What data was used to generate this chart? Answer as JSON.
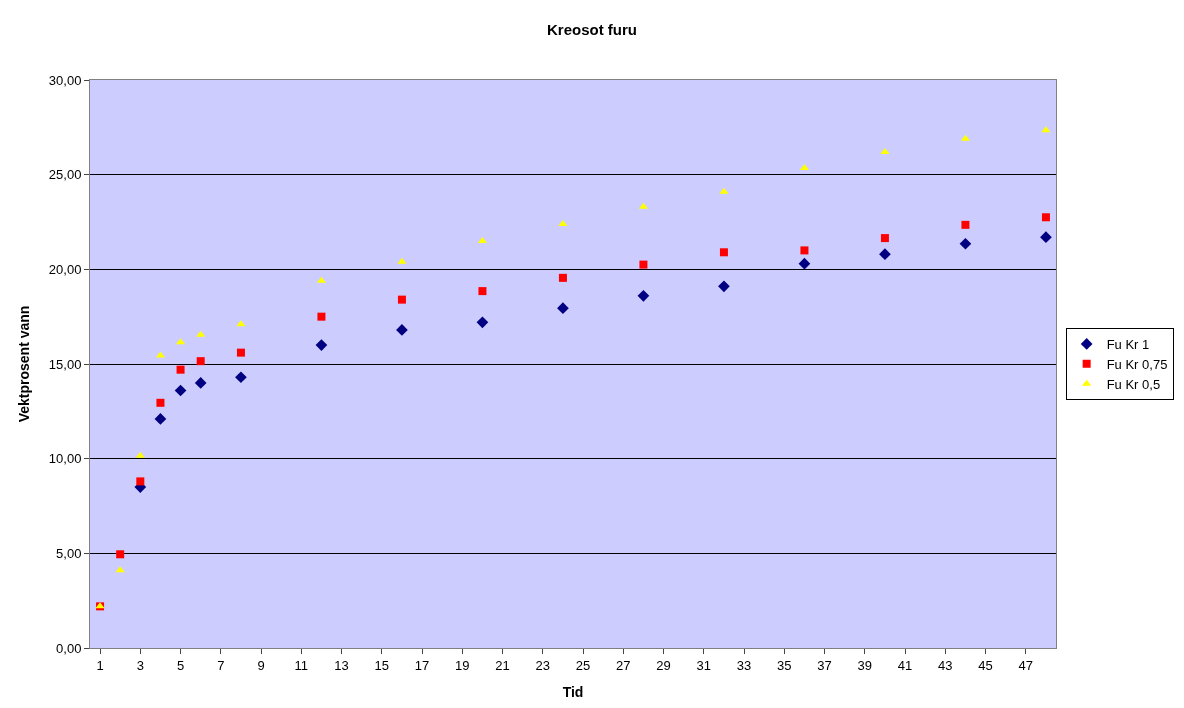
{
  "chart_data": {
    "type": "scatter",
    "title": "Kreosot furu",
    "xlabel": "Tid",
    "ylabel": "Vektprosent vann",
    "x": [
      1,
      2,
      3,
      4,
      5,
      6,
      8,
      12,
      16,
      20,
      24,
      28,
      32,
      36,
      40,
      44,
      48
    ],
    "series": [
      {
        "name": "Fu Kr 1",
        "color": "#000080",
        "marker": "diamond",
        "values": [
          null,
          null,
          8.5,
          12.1,
          13.6,
          14.0,
          14.3,
          16.0,
          16.8,
          17.2,
          17.95,
          18.6,
          19.1,
          20.3,
          20.8,
          21.35,
          21.7
        ]
      },
      {
        "name": "Fu Kr 0,75",
        "color": "#ff0000",
        "marker": "square",
        "values": [
          2.2,
          4.95,
          8.8,
          12.95,
          14.7,
          15.15,
          15.6,
          17.5,
          18.4,
          18.85,
          19.55,
          20.25,
          20.9,
          21.0,
          21.65,
          22.35,
          22.75
        ]
      },
      {
        "name": "Fu Kr 0,5",
        "color": "#ffff00",
        "marker": "triangle",
        "values": [
          2.2,
          4.1,
          10.15,
          15.45,
          16.15,
          16.55,
          17.1,
          19.4,
          20.4,
          21.5,
          22.4,
          23.3,
          24.1,
          25.35,
          26.2,
          26.9,
          27.35
        ]
      }
    ],
    "xlim": [
      0.5,
      48.5
    ],
    "xticks": [
      1,
      3,
      5,
      7,
      9,
      11,
      13,
      15,
      17,
      19,
      21,
      23,
      25,
      27,
      29,
      31,
      33,
      35,
      37,
      39,
      41,
      43,
      45,
      47
    ],
    "ylim": [
      0,
      30
    ],
    "yticks": [
      {
        "value": 0,
        "label": "0,00"
      },
      {
        "value": 5,
        "label": "5,00"
      },
      {
        "value": 10,
        "label": "10,00"
      },
      {
        "value": 15,
        "label": "15,00"
      },
      {
        "value": 20,
        "label": "20,00"
      },
      {
        "value": 25,
        "label": "25,00"
      },
      {
        "value": 30,
        "label": "30,00"
      }
    ],
    "grid": "y",
    "legend": "right"
  }
}
